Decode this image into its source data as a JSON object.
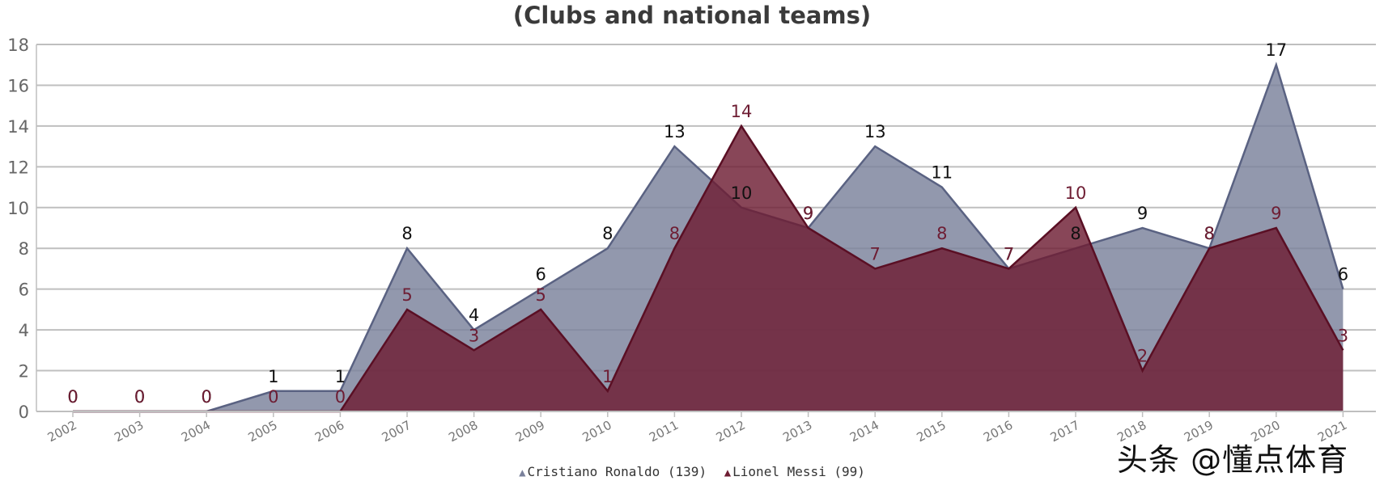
{
  "chart_data": {
    "type": "area",
    "title": "(Clubs and national teams)",
    "xlabel": "",
    "ylabel": "",
    "categories": [
      "2002",
      "2003",
      "2004",
      "2005",
      "2006",
      "2007",
      "2008",
      "2009",
      "2010",
      "2011",
      "2012",
      "2013",
      "2014",
      "2015",
      "2016",
      "2017",
      "2018",
      "2019",
      "2020",
      "2021"
    ],
    "ylim": [
      0,
      18
    ],
    "yticks": [
      0,
      2,
      4,
      6,
      8,
      10,
      12,
      14,
      16,
      18
    ],
    "grid": true,
    "legend_position": "bottom",
    "series": [
      {
        "name": "Cristiano Ronaldo (139)",
        "color": "#7a819b",
        "values": [
          0,
          0,
          0,
          1,
          1,
          8,
          4,
          6,
          8,
          13,
          10,
          9,
          13,
          11,
          7,
          8,
          9,
          8,
          17,
          6
        ]
      },
      {
        "name": "Lionel Messi (99)",
        "color": "#6e1d33",
        "values": [
          0,
          0,
          0,
          0,
          0,
          5,
          3,
          5,
          1,
          8,
          14,
          9,
          7,
          8,
          7,
          10,
          2,
          8,
          9,
          3
        ]
      }
    ]
  },
  "watermark": "头条 @懂点体育"
}
